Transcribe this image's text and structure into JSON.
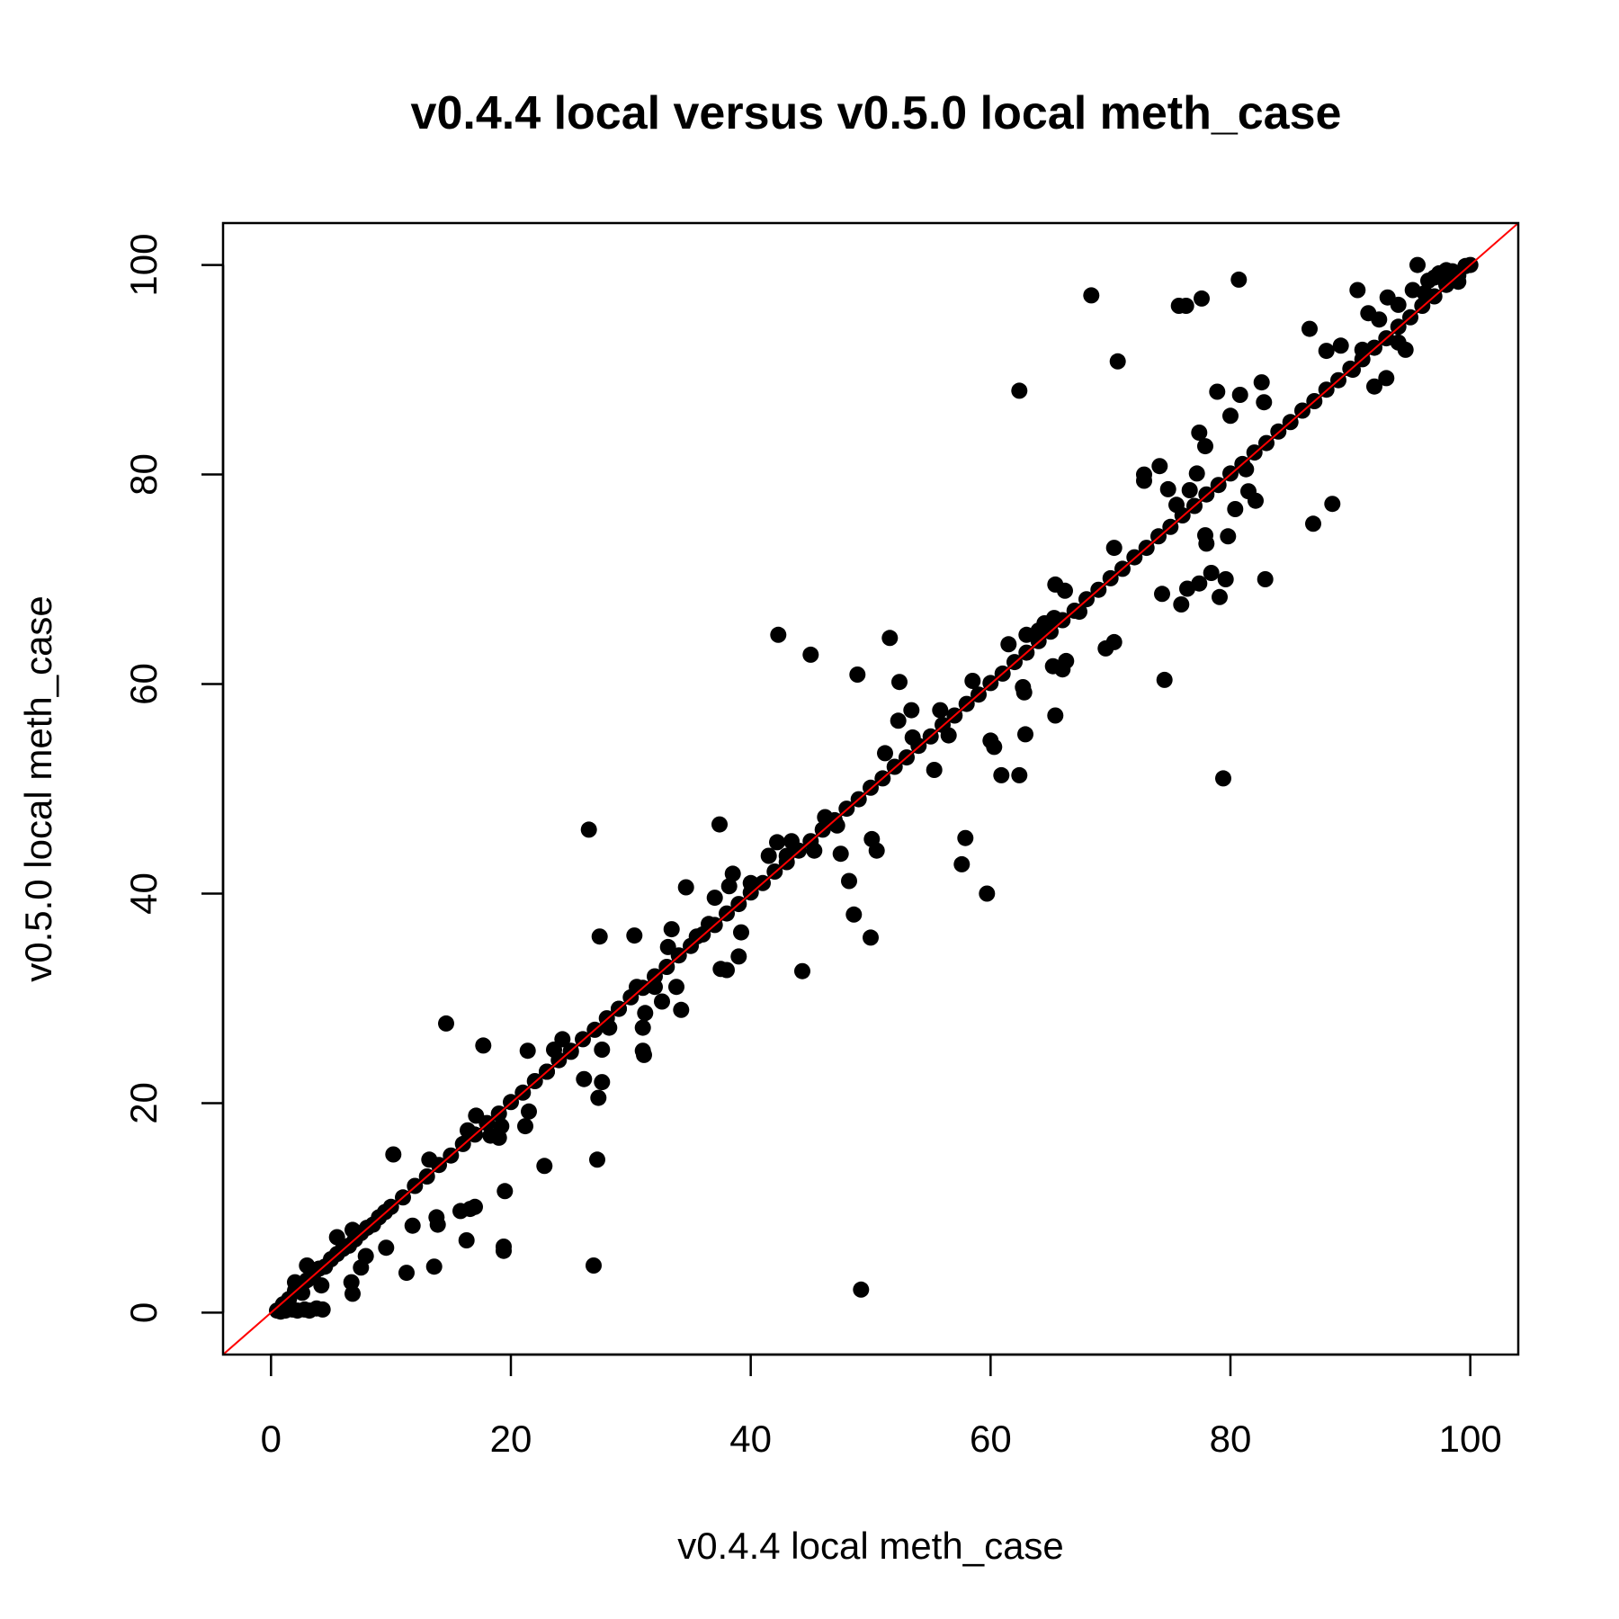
{
  "chart_data": {
    "type": "scatter",
    "title": "v0.4.4 local versus v0.5.0 local meth_case",
    "xlabel": "v0.4.4 local meth_case",
    "ylabel": "v0.5.0 local meth_case",
    "xlim": [
      -4,
      104
    ],
    "ylim": [
      -4,
      104
    ],
    "x_ticks": [
      0,
      20,
      40,
      60,
      80,
      100
    ],
    "y_ticks": [
      0,
      20,
      40,
      60,
      80,
      100
    ],
    "x_tick_labels": [
      "0",
      "20",
      "40",
      "60",
      "80",
      "100"
    ],
    "y_tick_labels": [
      "0",
      "20",
      "40",
      "60",
      "80",
      "100"
    ],
    "grid": false,
    "point_color": "#000000",
    "reference_line": {
      "type": "identity",
      "color": "#ff0000"
    },
    "regression_line": {
      "type": "fit",
      "color": "#000000"
    },
    "points": [
      [
        0.5,
        0.2
      ],
      [
        1.0,
        0.8
      ],
      [
        1.5,
        1.3
      ],
      [
        2.0,
        2.1
      ],
      [
        2.5,
        2.4
      ],
      [
        3.0,
        3.1
      ],
      [
        3.5,
        3.6
      ],
      [
        4.0,
        4.2
      ],
      [
        4.5,
        4.4
      ],
      [
        5.0,
        5.1
      ],
      [
        5.5,
        5.6
      ],
      [
        6.0,
        6.1
      ],
      [
        6.5,
        6.4
      ],
      [
        7.0,
        7.0
      ],
      [
        7.5,
        7.6
      ],
      [
        8.0,
        8.1
      ],
      [
        8.5,
        8.4
      ],
      [
        9.0,
        9.1
      ],
      [
        9.5,
        9.6
      ],
      [
        10.0,
        10.1
      ],
      [
        11.0,
        11.0
      ],
      [
        12.0,
        12.1
      ],
      [
        13.0,
        13.0
      ],
      [
        14.0,
        14.1
      ],
      [
        15.0,
        15.0
      ],
      [
        16.0,
        16.1
      ],
      [
        17.0,
        17.0
      ],
      [
        18.0,
        18.1
      ],
      [
        19.0,
        19.0
      ],
      [
        20.0,
        20.1
      ],
      [
        21.0,
        21.0
      ],
      [
        22.0,
        22.1
      ],
      [
        23.0,
        23.0
      ],
      [
        24.0,
        24.1
      ],
      [
        25.0,
        25.0
      ],
      [
        26.0,
        26.1
      ],
      [
        27.0,
        27.0
      ],
      [
        28.0,
        28.1
      ],
      [
        29.0,
        29.0
      ],
      [
        30.0,
        30.1
      ],
      [
        31.0,
        31.0
      ],
      [
        32.0,
        32.1
      ],
      [
        33.0,
        33.0
      ],
      [
        34.0,
        34.1
      ],
      [
        35.0,
        35.0
      ],
      [
        36.0,
        36.1
      ],
      [
        37.0,
        37.0
      ],
      [
        38.0,
        38.1
      ],
      [
        39.0,
        39.0
      ],
      [
        40.0,
        40.1
      ],
      [
        41.0,
        41.0
      ],
      [
        42.0,
        42.1
      ],
      [
        43.0,
        43.0
      ],
      [
        44.0,
        44.1
      ],
      [
        45.0,
        45.0
      ],
      [
        46.0,
        46.1
      ],
      [
        47.0,
        47.0
      ],
      [
        48.0,
        48.1
      ],
      [
        49.0,
        49.0
      ],
      [
        50.0,
        50.1
      ],
      [
        51.0,
        51.0
      ],
      [
        52.0,
        52.1
      ],
      [
        53.0,
        53.0
      ],
      [
        54.0,
        54.1
      ],
      [
        55.0,
        55.0
      ],
      [
        56.0,
        56.1
      ],
      [
        57.0,
        57.0
      ],
      [
        58.0,
        58.1
      ],
      [
        59.0,
        59.0
      ],
      [
        60.0,
        60.1
      ],
      [
        61.0,
        61.0
      ],
      [
        62.0,
        62.1
      ],
      [
        63.0,
        63.0
      ],
      [
        64.0,
        64.1
      ],
      [
        65.0,
        65.0
      ],
      [
        66.0,
        66.1
      ],
      [
        67.0,
        67.0
      ],
      [
        68.0,
        68.1
      ],
      [
        69.0,
        69.0
      ],
      [
        70.0,
        70.1
      ],
      [
        71.0,
        71.0
      ],
      [
        72.0,
        72.1
      ],
      [
        73.0,
        73.0
      ],
      [
        74.0,
        74.1
      ],
      [
        75.0,
        75.0
      ],
      [
        76.0,
        76.1
      ],
      [
        77.0,
        77.0
      ],
      [
        78.0,
        78.1
      ],
      [
        79.0,
        79.0
      ],
      [
        80.0,
        80.1
      ],
      [
        81.0,
        81.0
      ],
      [
        82.0,
        82.1
      ],
      [
        83.0,
        83.0
      ],
      [
        84.0,
        84.1
      ],
      [
        85.0,
        85.0
      ],
      [
        86.0,
        86.1
      ],
      [
        87.0,
        87.0
      ],
      [
        88.0,
        88.1
      ],
      [
        89.0,
        89.0
      ],
      [
        90.0,
        90.1
      ],
      [
        91.0,
        91.0
      ],
      [
        92.0,
        92.1
      ],
      [
        93.0,
        93.0
      ],
      [
        94.0,
        94.1
      ],
      [
        95.0,
        95.0
      ],
      [
        96.0,
        96.1
      ],
      [
        97.0,
        97.0
      ],
      [
        98.0,
        98.1
      ],
      [
        99.0,
        99.0
      ],
      [
        100.0,
        100.0
      ],
      [
        0.8,
        0.1
      ],
      [
        1.2,
        0.2
      ],
      [
        1.8,
        0.3
      ],
      [
        2.2,
        0.2
      ],
      [
        2.8,
        0.3
      ],
      [
        3.2,
        0.2
      ],
      [
        3.8,
        0.4
      ],
      [
        4.3,
        0.3
      ],
      [
        1.4,
        0.9
      ],
      [
        2.6,
        1.9
      ],
      [
        3.0,
        4.5
      ],
      [
        2.0,
        2.9
      ],
      [
        4.2,
        2.6
      ],
      [
        5.5,
        7.2
      ],
      [
        6.8,
        7.9
      ],
      [
        6.7,
        2.9
      ],
      [
        6.8,
        1.8
      ],
      [
        7.5,
        4.3
      ],
      [
        7.9,
        5.4
      ],
      [
        9.6,
        6.2
      ],
      [
        10.2,
        15.1
      ],
      [
        11.3,
        3.8
      ],
      [
        11.8,
        8.3
      ],
      [
        13.2,
        14.6
      ],
      [
        13.6,
        4.4
      ],
      [
        13.8,
        9.1
      ],
      [
        13.9,
        8.4
      ],
      [
        14.6,
        27.6
      ],
      [
        15.8,
        9.7
      ],
      [
        16.3,
        6.9
      ],
      [
        16.6,
        9.9
      ],
      [
        17.0,
        10.1
      ],
      [
        16.4,
        17.4
      ],
      [
        17.1,
        18.8
      ],
      [
        17.7,
        25.5
      ],
      [
        18.3,
        16.9
      ],
      [
        19.0,
        16.7
      ],
      [
        19.2,
        17.8
      ],
      [
        19.4,
        6.3
      ],
      [
        19.4,
        5.9
      ],
      [
        19.5,
        11.6
      ],
      [
        21.2,
        17.8
      ],
      [
        21.4,
        25.0
      ],
      [
        21.5,
        19.2
      ],
      [
        22.8,
        14.0
      ],
      [
        23.0,
        23.0
      ],
      [
        23.6,
        25.1
      ],
      [
        24.3,
        26.1
      ],
      [
        25.0,
        24.9
      ],
      [
        26.1,
        22.3
      ],
      [
        26.5,
        46.1
      ],
      [
        26.9,
        4.5
      ],
      [
        27.2,
        14.6
      ],
      [
        27.3,
        20.5
      ],
      [
        27.4,
        35.9
      ],
      [
        27.6,
        22.0
      ],
      [
        27.6,
        25.1
      ],
      [
        28.2,
        27.2
      ],
      [
        29.0,
        29.0
      ],
      [
        30.3,
        36.0
      ],
      [
        30.5,
        31.1
      ],
      [
        31.0,
        27.2
      ],
      [
        31.0,
        25.0
      ],
      [
        31.1,
        24.6
      ],
      [
        31.2,
        28.6
      ],
      [
        32.0,
        31.1
      ],
      [
        32.6,
        29.7
      ],
      [
        33.1,
        34.9
      ],
      [
        33.4,
        36.6
      ],
      [
        33.8,
        31.1
      ],
      [
        34.2,
        28.9
      ],
      [
        34.6,
        40.6
      ],
      [
        35.5,
        35.9
      ],
      [
        36.5,
        37.1
      ],
      [
        37.0,
        39.6
      ],
      [
        37.4,
        46.6
      ],
      [
        37.5,
        32.8
      ],
      [
        38.0,
        32.7
      ],
      [
        38.2,
        40.7
      ],
      [
        38.5,
        41.9
      ],
      [
        39.0,
        34.0
      ],
      [
        39.2,
        36.3
      ],
      [
        40.0,
        41.0
      ],
      [
        41.5,
        43.6
      ],
      [
        42.2,
        44.9
      ],
      [
        42.3,
        64.7
      ],
      [
        43.0,
        43.6
      ],
      [
        43.4,
        45.0
      ],
      [
        44.3,
        32.6
      ],
      [
        45.0,
        62.8
      ],
      [
        45.3,
        44.1
      ],
      [
        46.2,
        47.3
      ],
      [
        47.2,
        46.5
      ],
      [
        47.5,
        43.8
      ],
      [
        48.2,
        41.2
      ],
      [
        48.6,
        38.0
      ],
      [
        48.9,
        60.9
      ],
      [
        49.2,
        2.2
      ],
      [
        50.0,
        35.8
      ],
      [
        50.1,
        45.2
      ],
      [
        50.5,
        44.1
      ],
      [
        51.2,
        53.4
      ],
      [
        51.6,
        64.4
      ],
      [
        52.3,
        56.5
      ],
      [
        52.4,
        60.2
      ],
      [
        53.4,
        57.5
      ],
      [
        53.5,
        54.9
      ],
      [
        55.3,
        51.8
      ],
      [
        55.8,
        57.5
      ],
      [
        56.5,
        55.1
      ],
      [
        57.6,
        42.8
      ],
      [
        57.9,
        45.3
      ],
      [
        58.5,
        60.3
      ],
      [
        59.7,
        40.0
      ],
      [
        60.0,
        54.6
      ],
      [
        60.3,
        54.0
      ],
      [
        60.9,
        51.3
      ],
      [
        61.5,
        63.8
      ],
      [
        62.4,
        51.3
      ],
      [
        62.4,
        88.0
      ],
      [
        62.7,
        59.7
      ],
      [
        62.8,
        59.2
      ],
      [
        62.9,
        55.2
      ],
      [
        63.0,
        64.7
      ],
      [
        64.0,
        65.1
      ],
      [
        64.5,
        65.8
      ],
      [
        65.2,
        61.7
      ],
      [
        65.3,
        66.3
      ],
      [
        65.4,
        69.5
      ],
      [
        65.4,
        57.0
      ],
      [
        66.0,
        61.4
      ],
      [
        66.3,
        62.2
      ],
      [
        66.2,
        68.9
      ],
      [
        67.4,
        66.9
      ],
      [
        68.4,
        97.1
      ],
      [
        69.6,
        63.4
      ],
      [
        70.3,
        64.0
      ],
      [
        70.3,
        73.0
      ],
      [
        70.6,
        90.8
      ],
      [
        72.8,
        79.4
      ],
      [
        72.8,
        80.0
      ],
      [
        74.1,
        80.8
      ],
      [
        74.3,
        68.6
      ],
      [
        74.5,
        60.4
      ],
      [
        74.8,
        78.6
      ],
      [
        75.5,
        77.1
      ],
      [
        75.7,
        96.1
      ],
      [
        75.9,
        67.6
      ],
      [
        76.3,
        96.1
      ],
      [
        76.4,
        69.1
      ],
      [
        76.6,
        78.5
      ],
      [
        77.2,
        80.1
      ],
      [
        77.4,
        69.6
      ],
      [
        77.4,
        84.0
      ],
      [
        77.6,
        96.8
      ],
      [
        77.9,
        74.2
      ],
      [
        77.9,
        82.7
      ],
      [
        78.0,
        73.4
      ],
      [
        78.4,
        70.6
      ],
      [
        78.9,
        87.9
      ],
      [
        79.1,
        68.3
      ],
      [
        79.4,
        51.0
      ],
      [
        79.6,
        70.0
      ],
      [
        79.8,
        74.1
      ],
      [
        80.0,
        85.6
      ],
      [
        80.4,
        76.7
      ],
      [
        80.7,
        98.6
      ],
      [
        80.8,
        87.6
      ],
      [
        81.3,
        80.5
      ],
      [
        81.5,
        78.4
      ],
      [
        82.1,
        77.5
      ],
      [
        82.6,
        88.8
      ],
      [
        82.8,
        86.9
      ],
      [
        82.9,
        70.0
      ],
      [
        86.6,
        93.9
      ],
      [
        86.9,
        75.3
      ],
      [
        88.5,
        77.2
      ],
      [
        90.6,
        97.6
      ],
      [
        91.0,
        91.9
      ],
      [
        92.0,
        88.4
      ],
      [
        93.0,
        89.2
      ],
      [
        94.0,
        92.6
      ],
      [
        94.6,
        91.9
      ],
      [
        95.6,
        100.0
      ],
      [
        96.5,
        98.5
      ],
      [
        97.0,
        98.8
      ],
      [
        98.5,
        99.4
      ],
      [
        99.0,
        98.4
      ],
      [
        88.0,
        91.8
      ],
      [
        89.2,
        92.3
      ],
      [
        90.2,
        90.0
      ],
      [
        91.5,
        95.4
      ],
      [
        92.4,
        94.8
      ],
      [
        93.1,
        96.9
      ],
      [
        94.0,
        96.2
      ],
      [
        95.2,
        97.6
      ],
      [
        96.2,
        97.3
      ],
      [
        97.4,
        99.2
      ],
      [
        98.0,
        99.5
      ],
      [
        99.6,
        99.9
      ]
    ]
  }
}
